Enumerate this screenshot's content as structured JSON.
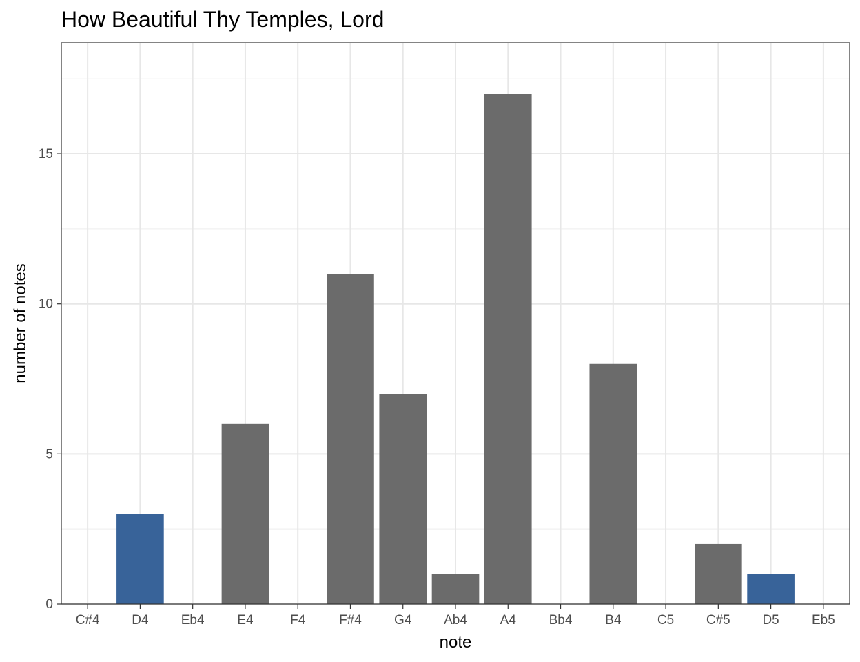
{
  "chart_data": {
    "type": "bar",
    "title": "How Beautiful Thy Temples, Lord",
    "xlabel": "note",
    "ylabel": "number of notes",
    "categories": [
      "C#4",
      "D4",
      "Eb4",
      "E4",
      "F4",
      "F#4",
      "G4",
      "Ab4",
      "A4",
      "Bb4",
      "B4",
      "C5",
      "C#5",
      "D5",
      "Eb5"
    ],
    "values": [
      0,
      3,
      0,
      6,
      0,
      11,
      7,
      1,
      17,
      0,
      8,
      0,
      2,
      1,
      0
    ],
    "highlight": [
      false,
      true,
      false,
      false,
      false,
      false,
      false,
      false,
      false,
      false,
      false,
      false,
      false,
      true,
      false
    ],
    "colors": {
      "default": "#6b6b6b",
      "highlight": "#386399"
    },
    "ylim": [
      0,
      18.7
    ],
    "yticks": [
      0,
      5,
      10,
      15
    ],
    "grid": true,
    "legend": "none"
  }
}
